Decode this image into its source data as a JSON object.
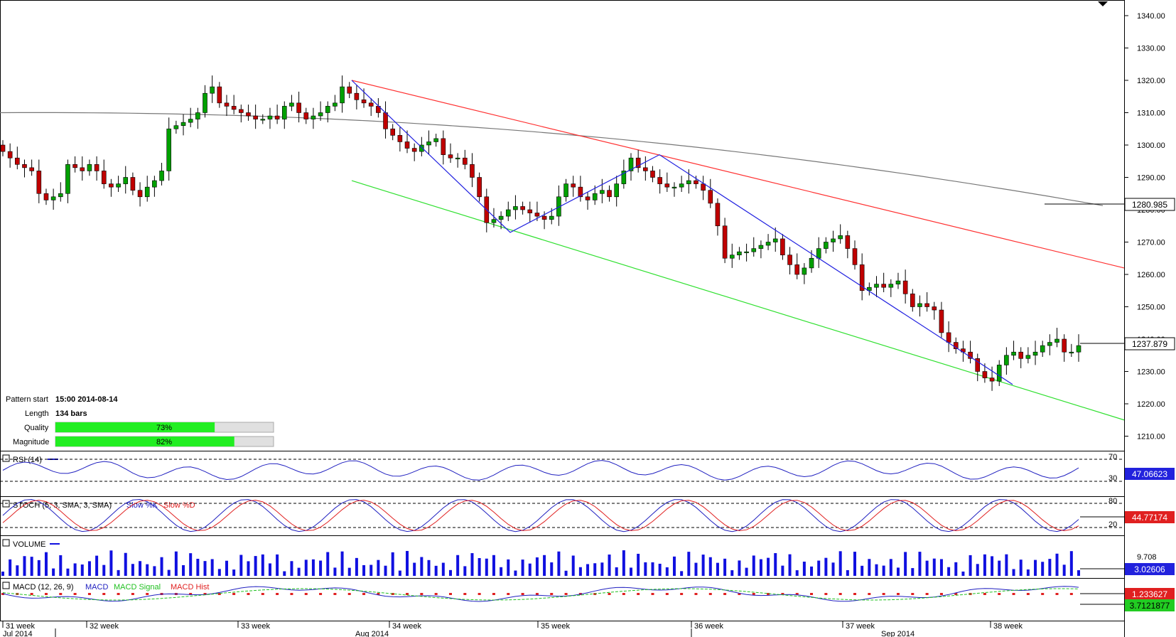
{
  "chart_data": {
    "type": "candlestick",
    "price_ticks": [
      "1340.00",
      "1330.00",
      "1320.00",
      "1310.00",
      "1300.00",
      "1290.00",
      "1280.00",
      "1270.00",
      "1260.00",
      "1250.00",
      "1240.00",
      "1230.00",
      "1220.00",
      "1210.00"
    ],
    "price_ylim": [
      1203,
      1345
    ],
    "last_price": "1237.879",
    "ma_value": "1280.985",
    "ohlc_close": [
      1298,
      1296,
      1294,
      1293,
      1292,
      1285,
      1283,
      1284,
      1285,
      1294,
      1293,
      1292,
      1294,
      1292,
      1288,
      1287,
      1288,
      1290,
      1286,
      1284,
      1287,
      1289,
      1292,
      1305,
      1306,
      1307,
      1308,
      1310,
      1316,
      1318,
      1313,
      1312,
      1311,
      1310,
      1309,
      1308,
      1308,
      1309,
      1308,
      1312,
      1313,
      1310,
      1308,
      1309,
      1310,
      1312,
      1313,
      1318,
      1316,
      1314,
      1313,
      1312,
      1310,
      1305,
      1303,
      1301,
      1299,
      1298,
      1300,
      1301,
      1302,
      1297,
      1296,
      1296,
      1294,
      1290,
      1284,
      1276,
      1277,
      1278,
      1280,
      1281,
      1280,
      1279,
      1278,
      1277,
      1278,
      1284,
      1288,
      1287,
      1284,
      1283,
      1285,
      1286,
      1284,
      1288,
      1292,
      1296,
      1293,
      1292,
      1290,
      1288,
      1287,
      1287,
      1288,
      1289,
      1288,
      1286,
      1282,
      1275,
      1265,
      1266,
      1267,
      1267,
      1268,
      1269,
      1270,
      1271,
      1266,
      1263,
      1260,
      1262,
      1265,
      1268,
      1270,
      1271,
      1272,
      1268,
      1263,
      1255,
      1256,
      1257,
      1256,
      1257,
      1258,
      1254,
      1250,
      1251,
      1250,
      1249,
      1242,
      1239,
      1237,
      1236,
      1234,
      1230,
      1228,
      1227,
      1232,
      1235,
      1236,
      1234,
      1235,
      1236,
      1238,
      1239,
      1240,
      1236,
      1236,
      1238
    ],
    "ohlc_open": [
      1300,
      1298,
      1296,
      1294,
      1293,
      1292,
      1285,
      1283,
      1284,
      1285,
      1294,
      1293,
      1292,
      1294,
      1292,
      1288,
      1287,
      1288,
      1290,
      1286,
      1284,
      1287,
      1289,
      1292,
      1305,
      1306,
      1307,
      1308,
      1310,
      1316,
      1318,
      1313,
      1312,
      1311,
      1310,
      1309,
      1308,
      1308,
      1309,
      1308,
      1312,
      1313,
      1310,
      1308,
      1309,
      1310,
      1312,
      1313,
      1318,
      1316,
      1314,
      1313,
      1312,
      1310,
      1305,
      1303,
      1301,
      1299,
      1298,
      1300,
      1301,
      1302,
      1297,
      1296,
      1296,
      1294,
      1290,
      1284,
      1276,
      1277,
      1278,
      1280,
      1281,
      1280,
      1279,
      1278,
      1277,
      1278,
      1284,
      1288,
      1287,
      1284,
      1283,
      1285,
      1286,
      1284,
      1288,
      1292,
      1296,
      1293,
      1292,
      1290,
      1288,
      1287,
      1287,
      1288,
      1289,
      1288,
      1286,
      1282,
      1275,
      1265,
      1266,
      1267,
      1267,
      1268,
      1269,
      1270,
      1271,
      1266,
      1263,
      1260,
      1262,
      1265,
      1268,
      1270,
      1271,
      1272,
      1268,
      1263,
      1255,
      1256,
      1257,
      1256,
      1257,
      1258,
      1254,
      1250,
      1251,
      1250,
      1249,
      1242,
      1239,
      1237,
      1236,
      1234,
      1230,
      1228,
      1227,
      1232,
      1235,
      1236,
      1234,
      1235,
      1236,
      1238,
      1239,
      1240,
      1236,
      1236
    ],
    "ma_start": 1310,
    "ma_end": 1281,
    "rsi": {
      "label": "RSI (14)",
      "value": "47.06623",
      "levels": [
        "70",
        "30"
      ]
    },
    "stoch": {
      "label": "STOCH (5, 3, SMA, 3, SMA)",
      "k_label": "Slow %K",
      "d_label": "Slow %D",
      "value": "44.77174",
      "levels": [
        "80",
        "20"
      ]
    },
    "volume": {
      "label": "VOLUME",
      "max_label": "9.708",
      "value": "3.02606"
    },
    "macd": {
      "label": "MACD (12, 26, 9)",
      "macd_label": "MACD",
      "signal_label": "MACD Signal",
      "hist_label": "MACD Hist",
      "value1": "1.233627",
      "value2": "3.7121877"
    },
    "week_labels": [
      "31 week",
      "32 week",
      "33 week",
      "34 week",
      "35 week",
      "36 week",
      "37 week",
      "38 week"
    ],
    "month_labels": [
      "Jul 2014",
      "Aug 2014",
      "Sep 2014"
    ]
  },
  "info": {
    "pattern_start_label": "Pattern start",
    "pattern_start_value": "15:00 2014-08-14",
    "length_label": "Length",
    "length_value": "134 bars",
    "quality_label": "Quality",
    "quality_value": "73%",
    "quality_fraction": 0.73,
    "magnitude_label": "Magnitude",
    "magnitude_value": "82%",
    "magnitude_fraction": 0.82
  },
  "colors": {
    "bull": "#00a000",
    "bear": "#c00000",
    "resistance": "#ff3030",
    "support": "#30e030",
    "zigzag": "#2020e0",
    "ma": "#777777",
    "rsi": "#2020c0",
    "volume": "#1010e0"
  }
}
